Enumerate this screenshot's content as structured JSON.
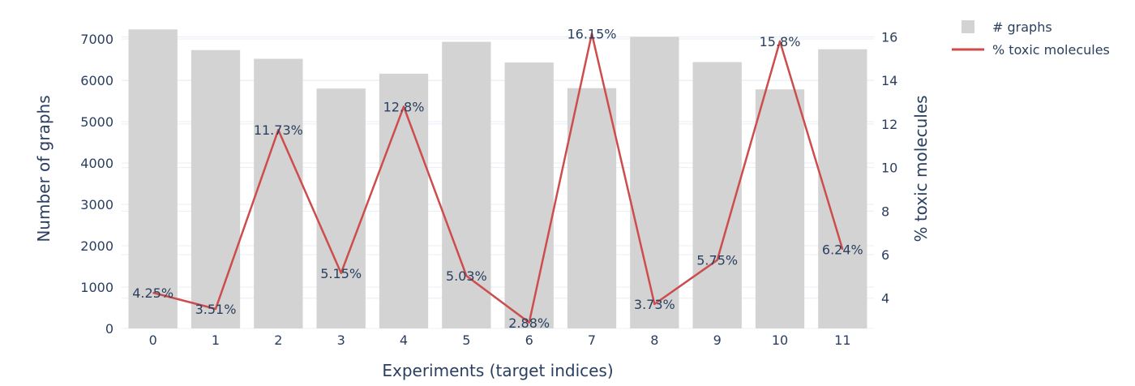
{
  "chart_data": {
    "type": "bar",
    "categories": [
      "0",
      "1",
      "2",
      "3",
      "4",
      "5",
      "6",
      "7",
      "8",
      "9",
      "10",
      "11"
    ],
    "xlabel": "Experiments (target indices)",
    "ylabel": "Number of graphs",
    "y2label": "% toxic molecules",
    "ylim": [
      0,
      7300
    ],
    "y2lim": [
      2.0,
      16.4
    ],
    "yticks": [
      0,
      1000,
      2000,
      3000,
      4000,
      5000,
      6000,
      7000
    ],
    "y2ticks": [
      4,
      6,
      8,
      10,
      12,
      14,
      16
    ],
    "grid": true,
    "legend_position": "top-right",
    "series": [
      {
        "name": "# graphs",
        "type": "bar",
        "axis": "y",
        "color": "#d3d3d3",
        "values": [
          7230,
          6730,
          6520,
          5800,
          6160,
          6930,
          6430,
          5810,
          7050,
          6440,
          5780,
          6750
        ]
      },
      {
        "name": "% toxic molecules",
        "type": "line",
        "axis": "y2",
        "color": "#cd4c4c",
        "values": [
          4.25,
          3.51,
          11.73,
          5.15,
          12.8,
          5.03,
          2.88,
          16.15,
          3.73,
          5.75,
          15.8,
          6.24
        ],
        "labels": [
          "4.25%",
          "3.51%",
          "11.73%",
          "5.15%",
          "12.8%",
          "5.03%",
          "2.88%",
          "16.15%",
          "3.73%",
          "5.75%",
          "15.8%",
          "6.24%"
        ]
      }
    ]
  }
}
